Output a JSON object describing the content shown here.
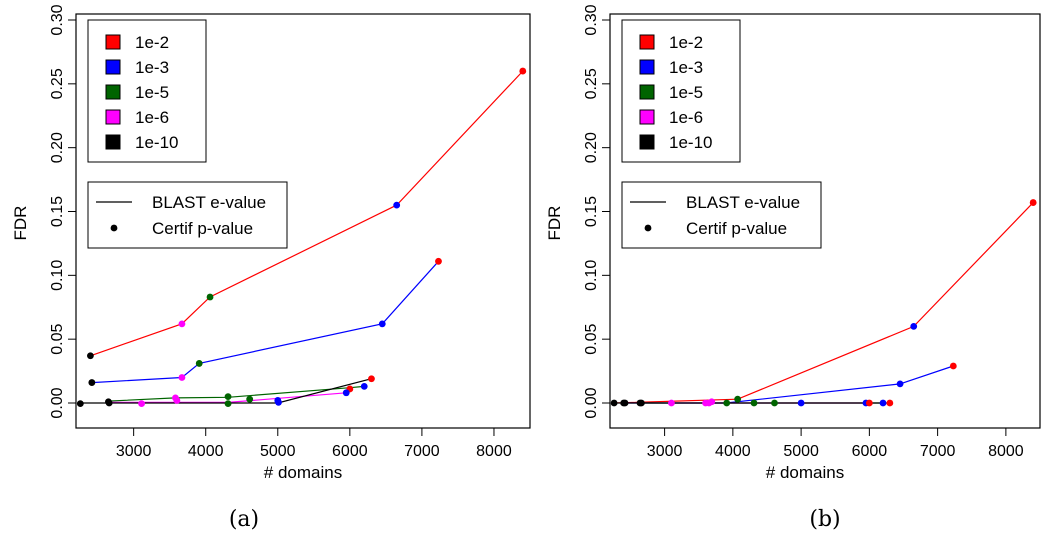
{
  "figure": {
    "legend_colors": {
      "1e-2": "#ff0000",
      "1e-3": "#0000ff",
      "1e-5": "#006400",
      "1e-6": "#ff00ff",
      "1e-10": "#000000"
    },
    "legend_style": {
      "line_label": "BLAST e-value",
      "point_label": "Certif p-value"
    }
  },
  "chart_data": [
    {
      "type": "line",
      "caption": "(a)",
      "xlabel": "# domains",
      "ylabel": "FDR",
      "xlim": [
        2200,
        8500
      ],
      "ylim": [
        0,
        0.3
      ],
      "xticks": [
        3000,
        4000,
        5000,
        6000,
        7000,
        8000
      ],
      "yticks": [
        0.0,
        0.05,
        0.1,
        0.15,
        0.2,
        0.25,
        0.3
      ],
      "yticklabels": [
        "0.00",
        "0.05",
        "0.10",
        "0.15",
        "0.20",
        "0.25",
        "0.30"
      ],
      "grid": false,
      "legend_position": "top-left",
      "line_color": "#ff0000",
      "lines": [
        {
          "name": "1e-2",
          "color": "#ff0000",
          "points": [
            [
              2400,
              0.037
            ],
            [
              3670,
              0.062
            ],
            [
              4060,
              0.083
            ],
            [
              6650,
              0.155
            ],
            [
              8400,
              0.26
            ]
          ]
        },
        {
          "name": "1e-3",
          "color": "#0000ff",
          "points": [
            [
              2420,
              0.016
            ],
            [
              3670,
              0.02
            ],
            [
              3910,
              0.031
            ],
            [
              6450,
              0.062
            ],
            [
              7230,
              0.111
            ]
          ]
        },
        {
          "name": "1e-5",
          "color": "#006400",
          "points": [
            [
              2650,
              0.0015
            ],
            [
              3580,
              0.004
            ],
            [
              4310,
              0.0045
            ],
            [
              6000,
              0.012
            ],
            [
              6200,
              0.013
            ]
          ]
        },
        {
          "name": "1e-6",
          "color": "#ff00ff",
          "points": [
            [
              2660,
              0.0005
            ],
            [
              3100,
              0.0005
            ],
            [
              4310,
              0.0005
            ],
            [
              5950,
              0.008
            ]
          ]
        },
        {
          "name": "1e-10",
          "color": "#000000",
          "points": [
            [
              2260,
              0.0
            ],
            [
              2650,
              0.0
            ],
            [
              5000,
              0.0
            ],
            [
              6300,
              0.019
            ]
          ]
        }
      ],
      "points": [
        {
          "x": 8400,
          "y": 0.26,
          "color": "#ff0000"
        },
        {
          "x": 6650,
          "y": 0.155,
          "color": "#0000ff"
        },
        {
          "x": 7230,
          "y": 0.111,
          "color": "#ff0000"
        },
        {
          "x": 4060,
          "y": 0.083,
          "color": "#006400"
        },
        {
          "x": 3670,
          "y": 0.062,
          "color": "#ff00ff"
        },
        {
          "x": 6450,
          "y": 0.062,
          "color": "#0000ff"
        },
        {
          "x": 2400,
          "y": 0.037,
          "color": "#000000"
        },
        {
          "x": 3910,
          "y": 0.031,
          "color": "#006400"
        },
        {
          "x": 3670,
          "y": 0.02,
          "color": "#ff00ff"
        },
        {
          "x": 2420,
          "y": 0.016,
          "color": "#000000"
        },
        {
          "x": 6300,
          "y": 0.019,
          "color": "#ff0000"
        },
        {
          "x": 6200,
          "y": 0.013,
          "color": "#0000ff"
        },
        {
          "x": 6000,
          "y": 0.011,
          "color": "#ff0000"
        },
        {
          "x": 5950,
          "y": 0.008,
          "color": "#0000ff"
        },
        {
          "x": 4310,
          "y": 0.005,
          "color": "#006400"
        },
        {
          "x": 4610,
          "y": 0.003,
          "color": "#006400"
        },
        {
          "x": 3580,
          "y": 0.004,
          "color": "#ff00ff"
        },
        {
          "x": 3600,
          "y": 0.002,
          "color": "#ff00ff"
        },
        {
          "x": 5000,
          "y": 0.002,
          "color": "#0000ff"
        },
        {
          "x": 5010,
          "y": 0.0005,
          "color": "#0000ff"
        },
        {
          "x": 4310,
          "y": -0.0005,
          "color": "#006400"
        },
        {
          "x": 3110,
          "y": -0.0005,
          "color": "#ff00ff"
        },
        {
          "x": 2650,
          "y": 0.001,
          "color": "#000000"
        },
        {
          "x": 2660,
          "y": 0.0,
          "color": "#000000"
        },
        {
          "x": 2260,
          "y": -0.0005,
          "color": "#000000"
        }
      ]
    },
    {
      "type": "line",
      "caption": "(b)",
      "xlabel": "# domains",
      "ylabel": "FDR",
      "xlim": [
        2200,
        8500
      ],
      "ylim": [
        0,
        0.3
      ],
      "xticks": [
        3000,
        4000,
        5000,
        6000,
        7000,
        8000
      ],
      "yticks": [
        0.0,
        0.05,
        0.1,
        0.15,
        0.2,
        0.25,
        0.3
      ],
      "yticklabels": [
        "0.00",
        "0.05",
        "0.10",
        "0.15",
        "0.20",
        "0.25",
        "0.30"
      ],
      "grid": false,
      "legend_position": "top-left",
      "lines": [
        {
          "name": "1e-2",
          "color": "#ff0000",
          "points": [
            [
              2260,
              0.0
            ],
            [
              4070,
              0.003
            ],
            [
              6650,
              0.06
            ],
            [
              8400,
              0.157
            ]
          ]
        },
        {
          "name": "1e-3",
          "color": "#0000ff",
          "points": [
            [
              2400,
              0.0
            ],
            [
              3900,
              0.0
            ],
            [
              6450,
              0.015
            ],
            [
              7230,
              0.029
            ]
          ]
        },
        {
          "name": "1e-5",
          "color": "#006400",
          "points": [
            [
              2640,
              0.0
            ],
            [
              6200,
              0.0
            ]
          ]
        },
        {
          "name": "1e-6",
          "color": "#ff00ff",
          "points": [
            [
              3100,
              0.0
            ],
            [
              5950,
              0.0
            ]
          ]
        },
        {
          "name": "1e-10",
          "color": "#000000",
          "points": [
            [
              2260,
              0.0
            ],
            [
              6300,
              0.0
            ]
          ]
        }
      ],
      "points": [
        {
          "x": 8400,
          "y": 0.157,
          "color": "#ff0000"
        },
        {
          "x": 6650,
          "y": 0.06,
          "color": "#0000ff"
        },
        {
          "x": 7230,
          "y": 0.029,
          "color": "#ff0000"
        },
        {
          "x": 6450,
          "y": 0.015,
          "color": "#0000ff"
        },
        {
          "x": 4070,
          "y": 0.003,
          "color": "#006400"
        },
        {
          "x": 3690,
          "y": 0.001,
          "color": "#ff00ff"
        },
        {
          "x": 2260,
          "y": 0.0,
          "color": "#000000"
        },
        {
          "x": 2400,
          "y": 0.0,
          "color": "#000000"
        },
        {
          "x": 2420,
          "y": 0.0,
          "color": "#000000"
        },
        {
          "x": 2640,
          "y": 0.0,
          "color": "#000000"
        },
        {
          "x": 2660,
          "y": 0.0,
          "color": "#000000"
        },
        {
          "x": 3100,
          "y": 0.0,
          "color": "#ff00ff"
        },
        {
          "x": 3600,
          "y": 0.0,
          "color": "#ff00ff"
        },
        {
          "x": 3650,
          "y": 0.0,
          "color": "#ff00ff"
        },
        {
          "x": 3910,
          "y": 0.0,
          "color": "#006400"
        },
        {
          "x": 4310,
          "y": 0.0,
          "color": "#006400"
        },
        {
          "x": 4610,
          "y": 0.0,
          "color": "#006400"
        },
        {
          "x": 5000,
          "y": 0.0,
          "color": "#0000ff"
        },
        {
          "x": 5950,
          "y": 0.0,
          "color": "#0000ff"
        },
        {
          "x": 6000,
          "y": 0.0,
          "color": "#ff0000"
        },
        {
          "x": 6200,
          "y": 0.0,
          "color": "#0000ff"
        },
        {
          "x": 6300,
          "y": 0.0,
          "color": "#ff0000"
        }
      ]
    }
  ]
}
